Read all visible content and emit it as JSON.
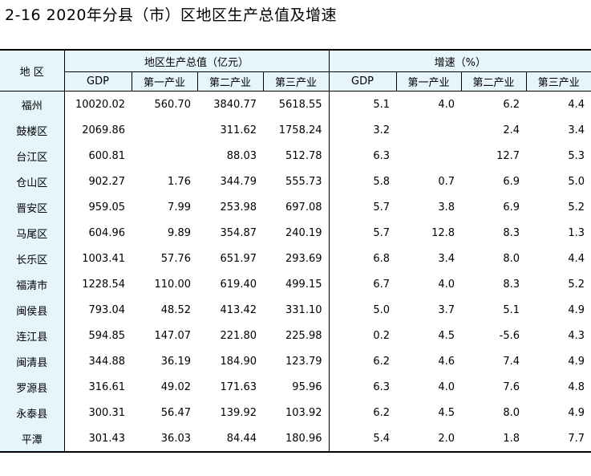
{
  "title": "2-16 2020年分县（市）区地区生产总值及增速",
  "table": {
    "region_header": "地 区",
    "group_gdp": "地区生产总值（亿元）",
    "group_growth": "增速（%）",
    "sub_headers": [
      "GDP",
      "第一产业",
      "第二产业",
      "第三产业",
      "GDP",
      "第一产业",
      "第二产业",
      "第三产业"
    ],
    "rows": [
      {
        "region": "福州",
        "values": [
          "10020.02",
          "560.70",
          "3840.77",
          "5618.55",
          "5.1",
          "4.0",
          "6.2",
          "4.4"
        ]
      },
      {
        "region": "鼓楼区",
        "values": [
          "2069.86",
          "",
          "311.62",
          "1758.24",
          "3.2",
          "",
          "2.4",
          "3.4"
        ]
      },
      {
        "region": "台江区",
        "values": [
          "600.81",
          "",
          "88.03",
          "512.78",
          "6.3",
          "",
          "12.7",
          "5.3"
        ]
      },
      {
        "region": "仓山区",
        "values": [
          "902.27",
          "1.76",
          "344.79",
          "555.73",
          "5.8",
          "0.7",
          "6.9",
          "5.0"
        ]
      },
      {
        "region": "晋安区",
        "values": [
          "959.05",
          "7.99",
          "253.98",
          "697.08",
          "5.7",
          "3.8",
          "6.9",
          "5.2"
        ]
      },
      {
        "region": "马尾区",
        "values": [
          "604.96",
          "9.89",
          "354.87",
          "240.19",
          "5.7",
          "12.8",
          "8.3",
          "1.3"
        ]
      },
      {
        "region": "长乐区",
        "values": [
          "1003.41",
          "57.76",
          "651.97",
          "293.69",
          "6.8",
          "3.4",
          "8.0",
          "4.4"
        ]
      },
      {
        "region": "福清市",
        "values": [
          "1228.54",
          "110.00",
          "619.40",
          "499.15",
          "6.7",
          "4.0",
          "8.3",
          "5.2"
        ]
      },
      {
        "region": "闽侯县",
        "values": [
          "793.04",
          "48.52",
          "413.42",
          "331.10",
          "5.0",
          "3.7",
          "5.1",
          "4.9"
        ]
      },
      {
        "region": "连江县",
        "values": [
          "594.85",
          "147.07",
          "221.80",
          "225.98",
          "0.2",
          "4.5",
          "-5.6",
          "4.3"
        ]
      },
      {
        "region": "闽清县",
        "values": [
          "344.88",
          "36.19",
          "184.90",
          "123.79",
          "6.2",
          "4.6",
          "7.4",
          "4.9"
        ]
      },
      {
        "region": "罗源县",
        "values": [
          "316.61",
          "49.02",
          "171.63",
          "95.96",
          "6.3",
          "4.0",
          "7.6",
          "4.8"
        ]
      },
      {
        "region": "永泰县",
        "values": [
          "300.31",
          "56.47",
          "139.92",
          "103.92",
          "6.2",
          "4.5",
          "8.0",
          "4.9"
        ]
      },
      {
        "region": "平潭",
        "values": [
          "301.43",
          "36.03",
          "84.44",
          "180.96",
          "5.4",
          "2.0",
          "1.8",
          "7.7"
        ]
      }
    ]
  },
  "colors": {
    "header_bg": "#e6f4fb",
    "border": "#000000"
  }
}
